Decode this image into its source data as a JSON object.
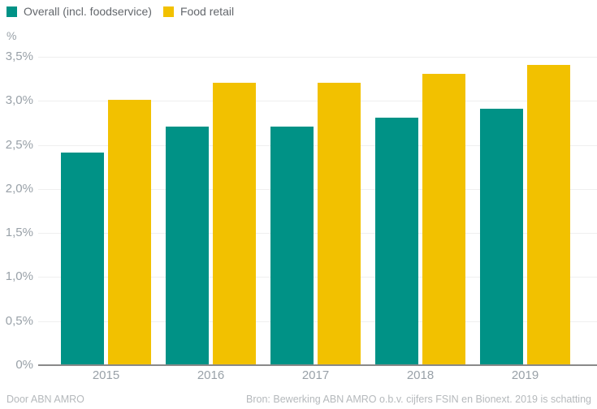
{
  "chart_data": {
    "type": "bar",
    "categories": [
      "2015",
      "2016",
      "2017",
      "2018",
      "2019"
    ],
    "series": [
      {
        "name": "Overall (incl. foodservice)",
        "color": "#009286",
        "values": [
          2.4,
          2.7,
          2.7,
          2.8,
          2.9
        ]
      },
      {
        "name": "Food retail",
        "color": "#F2C100",
        "values": [
          3.0,
          3.2,
          3.2,
          3.3,
          3.4
        ]
      }
    ],
    "title": "",
    "xlabel": "",
    "ylabel": "%",
    "ylim": [
      0,
      3.5
    ],
    "grid": true,
    "legend_position": "top-left",
    "yticks": [
      {
        "value": 0,
        "label": "0%"
      },
      {
        "value": 0.5,
        "label": "0,5%"
      },
      {
        "value": 1.0,
        "label": "1,0%"
      },
      {
        "value": 1.5,
        "label": "1,5%"
      },
      {
        "value": 2.0,
        "label": "2,0%"
      },
      {
        "value": 2.5,
        "label": "2,5%"
      },
      {
        "value": 3.0,
        "label": "3,0%"
      },
      {
        "value": 3.5,
        "label": "3,5%"
      }
    ]
  },
  "footer": {
    "left": "Door ABN AMRO",
    "right": "Bron: Bewerking ABN AMRO o.b.v. cijfers FSIN en Bionext. 2019 is schatting"
  },
  "colors": {
    "series_overall": "#009286",
    "series_food_retail": "#F2C100",
    "gridline": "#efefef",
    "axis_line": "#898989",
    "axis_label_text": "#99a1a8",
    "legend_text": "#63676c",
    "footer_text": "#b5b9bc",
    "background": "#ffffff"
  }
}
